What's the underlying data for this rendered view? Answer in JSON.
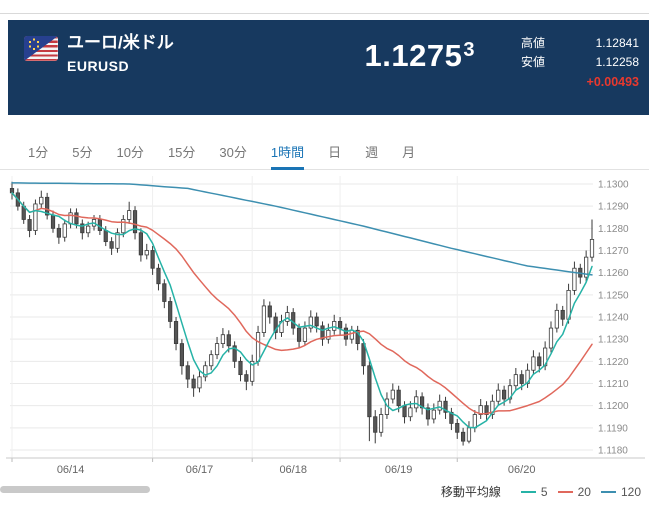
{
  "header": {
    "title": "ユーロ/米ドル",
    "code": "EURUSD",
    "price_main": "1.1275",
    "price_small": "3",
    "high_label": "高値",
    "high_value": "1.12841",
    "low_label": "安値",
    "low_value": "1.12258",
    "change": "+0.00493"
  },
  "colors": {
    "header_bg": "#17395f",
    "change_red": "#e8392e",
    "tab_active": "#1a74b5",
    "ma5": "#26b3a7",
    "ma20": "#e0685c",
    "ma120": "#3d8fb0",
    "candle_up": "#ffffff",
    "candle_down": "#555555",
    "candle_stroke": "#3a3a3a",
    "grid": "#e9e9e9",
    "axis_text": "#8a8a8a"
  },
  "tabs": [
    {
      "key": "1min",
      "label": "1分",
      "active": false
    },
    {
      "key": "5min",
      "label": "5分",
      "active": false
    },
    {
      "key": "10min",
      "label": "10分",
      "active": false
    },
    {
      "key": "15min",
      "label": "15分",
      "active": false
    },
    {
      "key": "30min",
      "label": "30分",
      "active": false
    },
    {
      "key": "1hour",
      "label": "1時間",
      "active": true
    },
    {
      "key": "day",
      "label": "日",
      "active": false
    },
    {
      "key": "week",
      "label": "週",
      "active": false
    },
    {
      "key": "month",
      "label": "月",
      "active": false
    }
  ],
  "chart_data": {
    "type": "candlestick",
    "timeframe": "1時間",
    "ylim": [
      1.1175,
      1.1306
    ],
    "y_tick_labels": [
      "1.1300",
      "1.1290",
      "1.1280",
      "1.1270",
      "1.1260",
      "1.1250",
      "1.1240",
      "1.1230",
      "1.1220",
      "1.1210",
      "1.1200",
      "1.1190",
      "1.1180"
    ],
    "x_labels": [
      {
        "index": 10,
        "label": "06/14"
      },
      {
        "index": 32,
        "label": "06/17"
      },
      {
        "index": 48,
        "label": "06/18"
      },
      {
        "index": 66,
        "label": "06/19"
      },
      {
        "index": 87,
        "label": "06/20"
      }
    ],
    "day_boundaries": [
      0,
      24,
      41,
      56,
      76
    ],
    "candles": [
      [
        1.1298,
        1.1301,
        1.1293,
        1.1296
      ],
      [
        1.1296,
        1.1298,
        1.1288,
        1.129
      ],
      [
        1.129,
        1.1292,
        1.1282,
        1.1284
      ],
      [
        1.1284,
        1.1286,
        1.1276,
        1.1279
      ],
      [
        1.1279,
        1.1293,
        1.1277,
        1.1291
      ],
      [
        1.1291,
        1.1297,
        1.1289,
        1.1294
      ],
      [
        1.1294,
        1.1296,
        1.1284,
        1.1286
      ],
      [
        1.1286,
        1.1288,
        1.1278,
        1.128
      ],
      [
        1.128,
        1.1282,
        1.1273,
        1.1276
      ],
      [
        1.1276,
        1.1284,
        1.1274,
        1.1282
      ],
      [
        1.1282,
        1.1289,
        1.128,
        1.1287
      ],
      [
        1.1287,
        1.1289,
        1.128,
        1.1282
      ],
      [
        1.1282,
        1.1284,
        1.1275,
        1.1278
      ],
      [
        1.1278,
        1.1283,
        1.1276,
        1.1281
      ],
      [
        1.1281,
        1.1286,
        1.1279,
        1.1284
      ],
      [
        1.1284,
        1.1286,
        1.1277,
        1.1279
      ],
      [
        1.1279,
        1.1281,
        1.1272,
        1.1274
      ],
      [
        1.1274,
        1.1276,
        1.1268,
        1.1271
      ],
      [
        1.1271,
        1.128,
        1.1269,
        1.1278
      ],
      [
        1.1278,
        1.1286,
        1.1276,
        1.1284
      ],
      [
        1.1284,
        1.1292,
        1.1282,
        1.1288
      ],
      [
        1.1288,
        1.129,
        1.1275,
        1.1278
      ],
      [
        1.1278,
        1.128,
        1.1265,
        1.1268
      ],
      [
        1.1268,
        1.1273,
        1.1266,
        1.127
      ],
      [
        1.127,
        1.1272,
        1.1259,
        1.1262
      ],
      [
        1.1262,
        1.1264,
        1.1252,
        1.1255
      ],
      [
        1.1255,
        1.1257,
        1.1244,
        1.1247
      ],
      [
        1.1247,
        1.1249,
        1.1235,
        1.1238
      ],
      [
        1.1238,
        1.124,
        1.1225,
        1.1228
      ],
      [
        1.1228,
        1.123,
        1.1214,
        1.1218
      ],
      [
        1.1218,
        1.122,
        1.1208,
        1.1212
      ],
      [
        1.1212,
        1.1214,
        1.1204,
        1.1208
      ],
      [
        1.1208,
        1.1216,
        1.1206,
        1.1213
      ],
      [
        1.1213,
        1.122,
        1.1211,
        1.1218
      ],
      [
        1.1218,
        1.1225,
        1.1216,
        1.1223
      ],
      [
        1.1223,
        1.1231,
        1.1221,
        1.1228
      ],
      [
        1.1228,
        1.1235,
        1.1226,
        1.1232
      ],
      [
        1.1232,
        1.1234,
        1.1224,
        1.1227
      ],
      [
        1.1227,
        1.1229,
        1.1217,
        1.122
      ],
      [
        1.122,
        1.1222,
        1.1211,
        1.1214
      ],
      [
        1.1214,
        1.1216,
        1.1207,
        1.1211
      ],
      [
        1.1211,
        1.1223,
        1.1209,
        1.122
      ],
      [
        1.122,
        1.1236,
        1.1218,
        1.1233
      ],
      [
        1.1233,
        1.1248,
        1.1231,
        1.1245
      ],
      [
        1.1245,
        1.1247,
        1.1237,
        1.124
      ],
      [
        1.124,
        1.1242,
        1.123,
        1.1233
      ],
      [
        1.1233,
        1.1241,
        1.1231,
        1.1238
      ],
      [
        1.1238,
        1.1245,
        1.1236,
        1.1242
      ],
      [
        1.1242,
        1.1244,
        1.1232,
        1.1235
      ],
      [
        1.1235,
        1.1237,
        1.1226,
        1.1229
      ],
      [
        1.1229,
        1.1238,
        1.1227,
        1.1235
      ],
      [
        1.1235,
        1.1243,
        1.1233,
        1.124
      ],
      [
        1.124,
        1.1242,
        1.1233,
        1.1236
      ],
      [
        1.1236,
        1.1238,
        1.1227,
        1.123
      ],
      [
        1.123,
        1.1237,
        1.1228,
        1.1234
      ],
      [
        1.1234,
        1.1241,
        1.1232,
        1.1238
      ],
      [
        1.1238,
        1.124,
        1.1232,
        1.1235
      ],
      [
        1.1235,
        1.1237,
        1.1227,
        1.123
      ],
      [
        1.123,
        1.1236,
        1.1228,
        1.1234
      ],
      [
        1.1234,
        1.1236,
        1.1225,
        1.1228
      ],
      [
        1.1228,
        1.123,
        1.1214,
        1.1218
      ],
      [
        1.1218,
        1.122,
        1.1184,
        1.1195
      ],
      [
        1.1195,
        1.1198,
        1.1183,
        1.1188
      ],
      [
        1.1188,
        1.1199,
        1.1186,
        1.1196
      ],
      [
        1.1196,
        1.1206,
        1.1194,
        1.1203
      ],
      [
        1.1203,
        1.121,
        1.1201,
        1.1207
      ],
      [
        1.1207,
        1.1209,
        1.1197,
        1.12
      ],
      [
        1.12,
        1.1202,
        1.1192,
        1.1195
      ],
      [
        1.1195,
        1.1202,
        1.1193,
        1.1199
      ],
      [
        1.1199,
        1.1207,
        1.1197,
        1.1204
      ],
      [
        1.1204,
        1.1206,
        1.1196,
        1.1199
      ],
      [
        1.1199,
        1.1201,
        1.1191,
        1.1194
      ],
      [
        1.1194,
        1.1201,
        1.1192,
        1.1198
      ],
      [
        1.1198,
        1.1205,
        1.1196,
        1.1202
      ],
      [
        1.1202,
        1.1204,
        1.1194,
        1.1197
      ],
      [
        1.1197,
        1.1199,
        1.1189,
        1.1192
      ],
      [
        1.1192,
        1.1194,
        1.1185,
        1.1188
      ],
      [
        1.1188,
        1.119,
        1.1182,
        1.1184
      ],
      [
        1.1184,
        1.1193,
        1.1183,
        1.119
      ],
      [
        1.119,
        1.1198,
        1.1188,
        1.1196
      ],
      [
        1.1196,
        1.1203,
        1.1194,
        1.12
      ],
      [
        1.12,
        1.1202,
        1.1193,
        1.1196
      ],
      [
        1.1196,
        1.1205,
        1.1194,
        1.1202
      ],
      [
        1.1202,
        1.121,
        1.12,
        1.1207
      ],
      [
        1.1207,
        1.1209,
        1.12,
        1.1203
      ],
      [
        1.1203,
        1.1212,
        1.1201,
        1.1209
      ],
      [
        1.1209,
        1.1217,
        1.1207,
        1.1214
      ],
      [
        1.1214,
        1.1216,
        1.1207,
        1.121
      ],
      [
        1.121,
        1.1219,
        1.1208,
        1.1216
      ],
      [
        1.1216,
        1.1225,
        1.1214,
        1.1222
      ],
      [
        1.1222,
        1.1224,
        1.1215,
        1.1218
      ],
      [
        1.1218,
        1.1229,
        1.1216,
        1.1226
      ],
      [
        1.1226,
        1.1238,
        1.1224,
        1.1235
      ],
      [
        1.1235,
        1.1246,
        1.1233,
        1.1243
      ],
      [
        1.1243,
        1.1245,
        1.1236,
        1.1239
      ],
      [
        1.1239,
        1.1255,
        1.1237,
        1.1252
      ],
      [
        1.1252,
        1.1265,
        1.125,
        1.1262
      ],
      [
        1.1262,
        1.1264,
        1.1255,
        1.1258
      ],
      [
        1.1258,
        1.127,
        1.1256,
        1.1267
      ],
      [
        1.1267,
        1.1284,
        1.1265,
        1.1275
      ]
    ],
    "series": [
      {
        "name": "5",
        "type": "sma",
        "window": 5,
        "color": "#26b3a7"
      },
      {
        "name": "20",
        "type": "sma",
        "window": 20,
        "color": "#e0685c"
      },
      {
        "name": "120",
        "type": "points",
        "color": "#3d8fb0",
        "points": [
          [
            0,
            1.13005
          ],
          [
            20,
            1.13
          ],
          [
            30,
            1.1298
          ],
          [
            45,
            1.129
          ],
          [
            60,
            1.1281
          ],
          [
            75,
            1.1271
          ],
          [
            88,
            1.1263
          ],
          [
            99,
            1.1259
          ]
        ]
      }
    ]
  },
  "legend": {
    "title": "移動平均線",
    "items": [
      {
        "label": "5",
        "color_ref": "ma5"
      },
      {
        "label": "20",
        "color_ref": "ma20"
      },
      {
        "label": "120",
        "color_ref": "ma120"
      }
    ]
  }
}
